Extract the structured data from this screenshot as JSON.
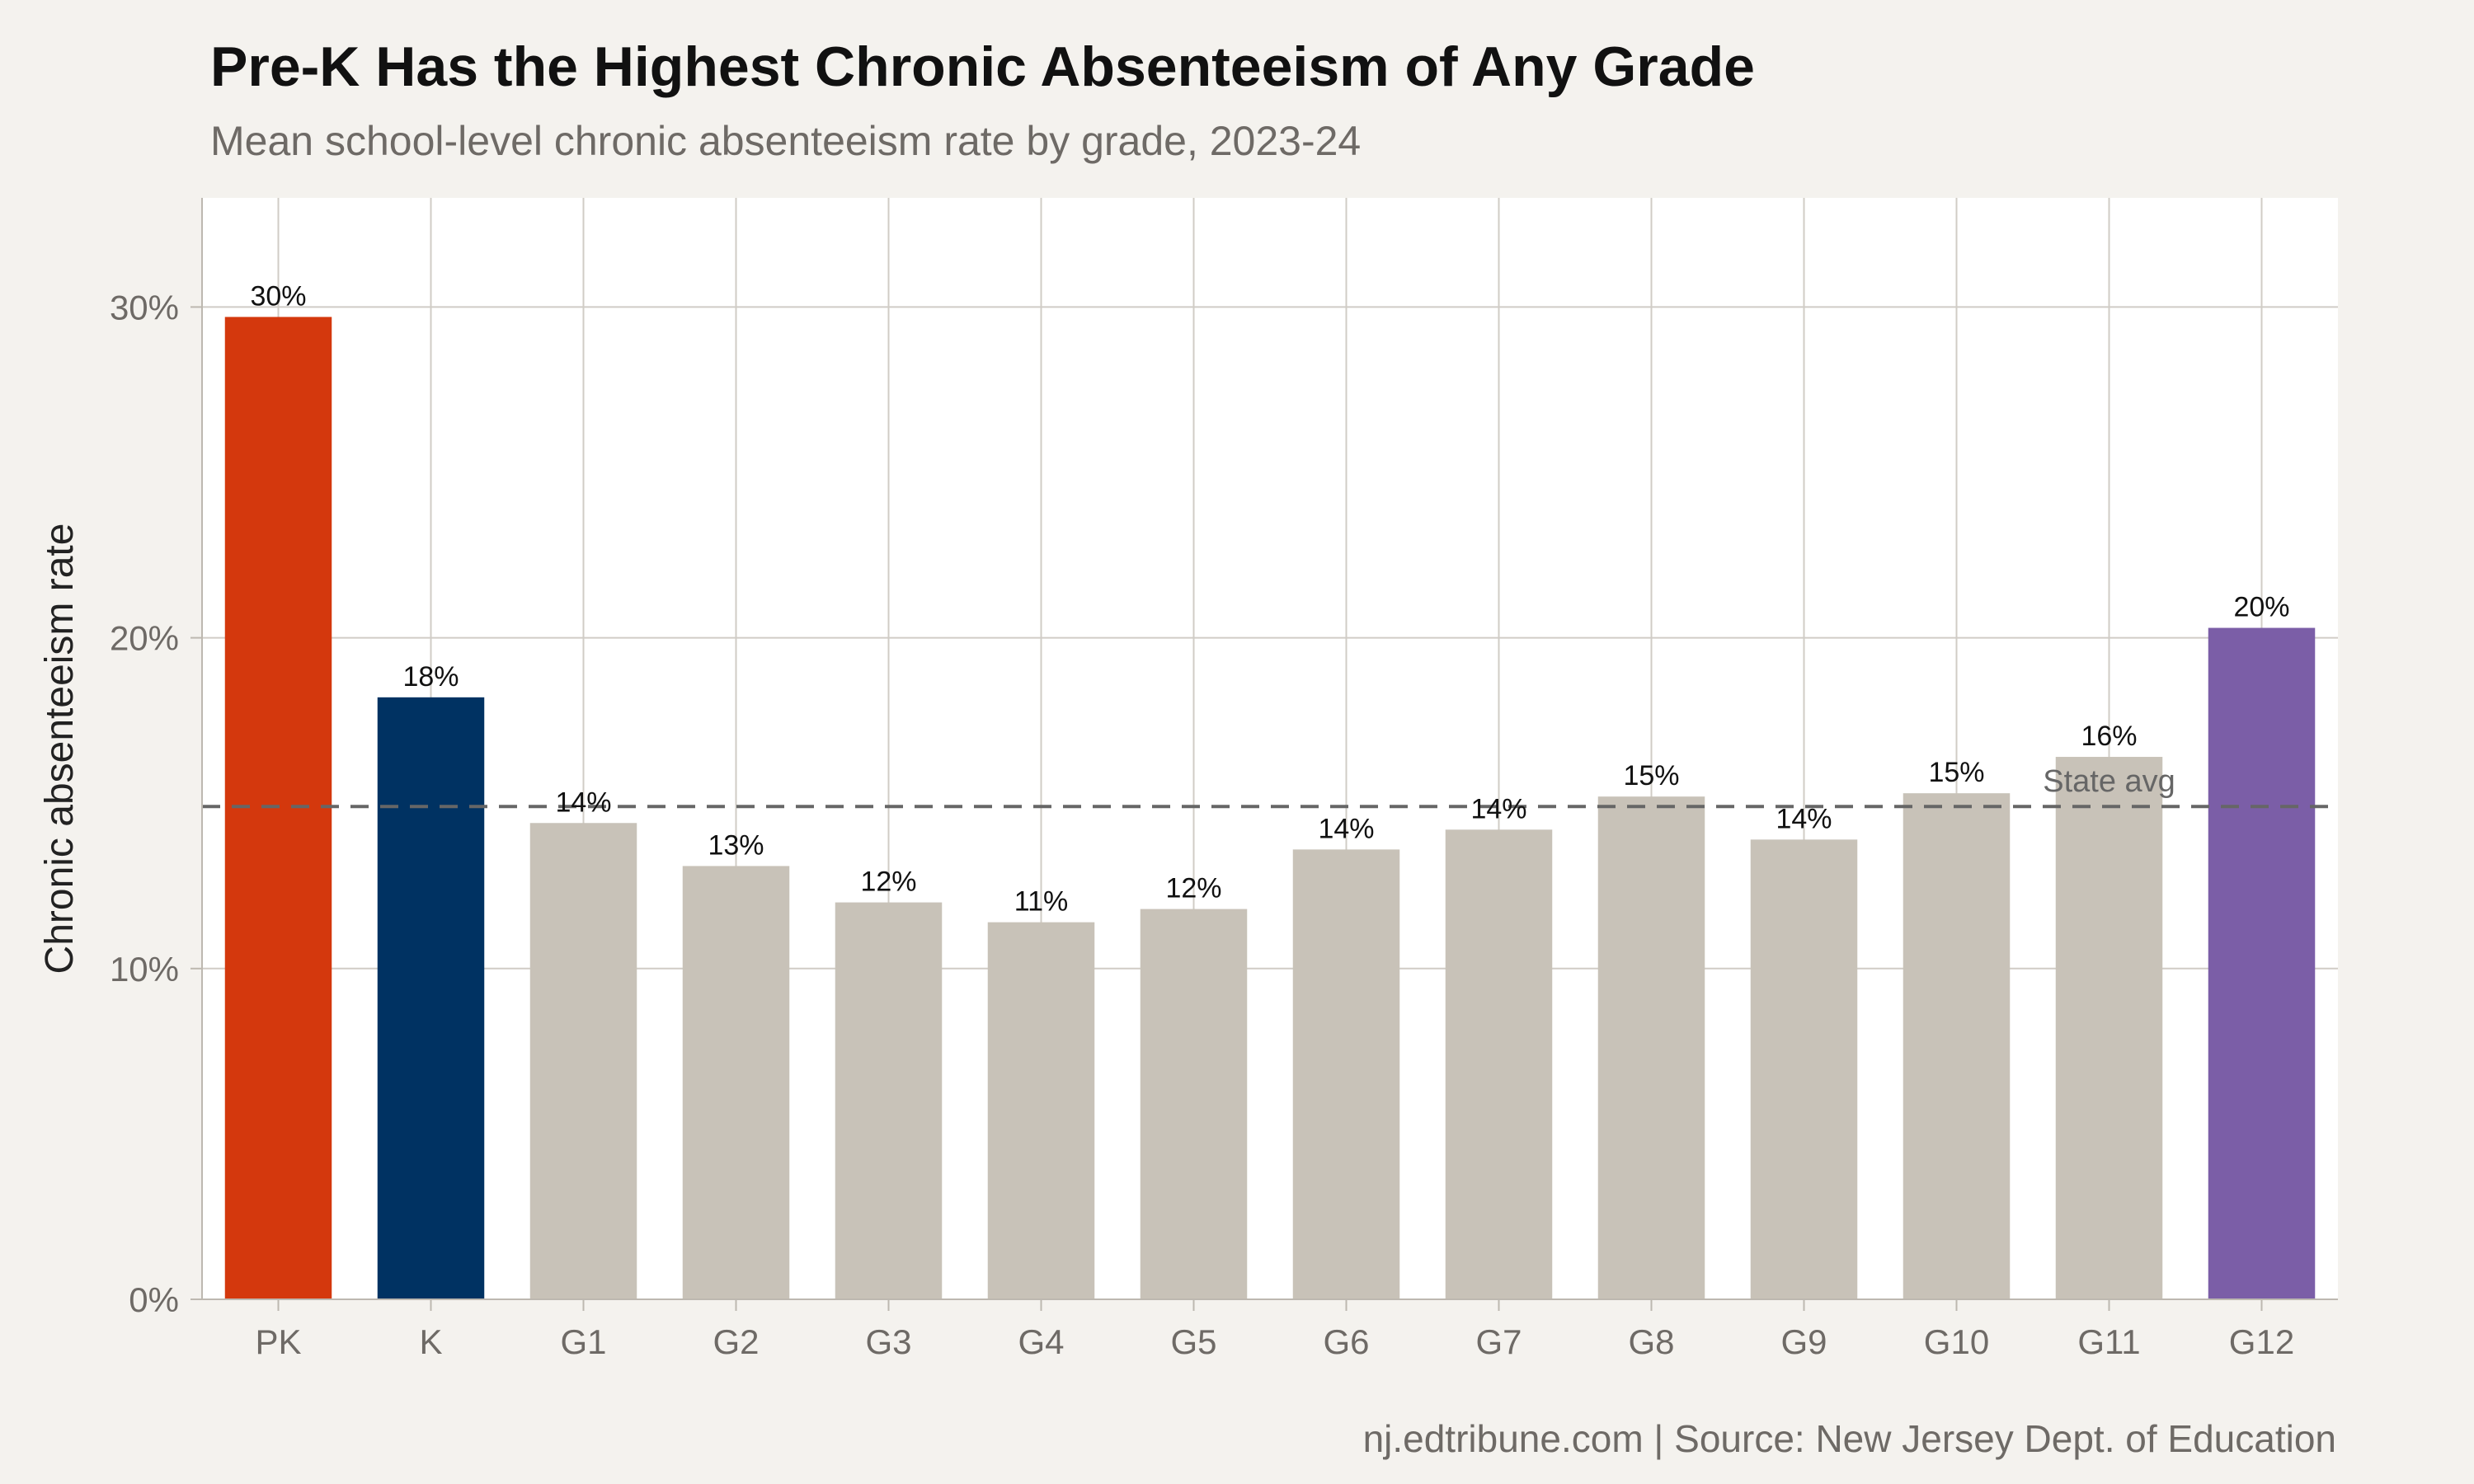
{
  "chart_data": {
    "type": "bar",
    "title": "Pre-K Has the Highest Chronic Absenteeism of Any Grade",
    "subtitle": "Mean school-level chronic absenteeism rate by grade, 2023-24",
    "xlabel": "",
    "ylabel": "Chronic absenteeism rate",
    "caption": "nj.edtribune.com | Source: New Jersey Dept. of Education",
    "categories": [
      "PK",
      "K",
      "G1",
      "G2",
      "G3",
      "G4",
      "G5",
      "G6",
      "G7",
      "G8",
      "G9",
      "G10",
      "G11",
      "G12"
    ],
    "values": [
      29.7,
      18.2,
      14.4,
      13.1,
      12.0,
      11.4,
      11.8,
      13.6,
      14.2,
      15.2,
      13.9,
      15.3,
      16.4,
      20.3
    ],
    "data_labels": [
      "30%",
      "18%",
      "14%",
      "13%",
      "12%",
      "11%",
      "12%",
      "14%",
      "14%",
      "15%",
      "14%",
      "15%",
      "16%",
      "20%"
    ],
    "bar_colors": [
      "#d4380d",
      "#003262",
      "#c8c2b8",
      "#c8c2b8",
      "#c8c2b8",
      "#c8c2b8",
      "#c8c2b8",
      "#c8c2b8",
      "#c8c2b8",
      "#c8c2b8",
      "#c8c2b8",
      "#c8c2b8",
      "#c8c2b8",
      "#7b5ea7"
    ],
    "ylim": [
      0,
      33.3
    ],
    "y_ticks": [
      0,
      10,
      20,
      30
    ],
    "y_tick_labels": [
      "0%",
      "10%",
      "20%",
      "30%"
    ],
    "grid": true,
    "reference_line": {
      "value": 14.9,
      "label": "State avg",
      "style": "dashed",
      "color": "#666666"
    },
    "panel_color": "#ffffff",
    "grid_color": "#d0ccc6"
  }
}
